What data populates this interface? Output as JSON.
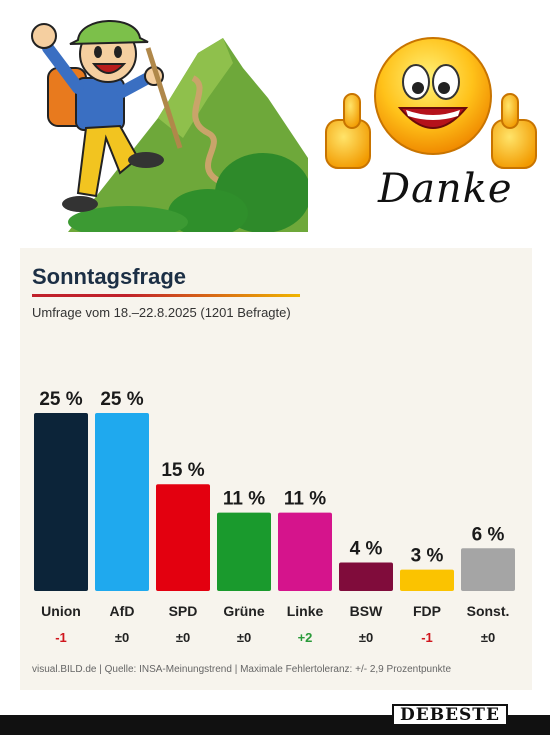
{
  "images": {
    "left_icon": "hiker-cartoon-icon",
    "right_icon": "thumbs-up-smiley-icon",
    "right_caption": "Danke"
  },
  "colors": {
    "card_background": "#f7f4ed",
    "title": "#1c2f45",
    "negative_change": "#d0151d",
    "positive_change": "#2a9a3a",
    "neutral_change": "#222222"
  },
  "chart_data": {
    "type": "bar",
    "title": "Sonntagsfrage",
    "subtitle": "Umfrage vom 18.–22.8.2025 (1201 Befragte)",
    "xlabel": "",
    "ylabel": "",
    "ylim": [
      0,
      25
    ],
    "grid": false,
    "categories": [
      "Union",
      "AfD",
      "SPD",
      "Grüne",
      "Linke",
      "BSW",
      "FDP",
      "Sonst."
    ],
    "values": [
      25,
      25,
      15,
      11,
      11,
      4,
      3,
      6
    ],
    "value_labels": [
      "25 %",
      "25 %",
      "15 %",
      "11 %",
      "11 %",
      "4 %",
      "3 %",
      "6 %"
    ],
    "changes": [
      "-1",
      "±0",
      "±0",
      "±0",
      "+2",
      "±0",
      "-1",
      "±0"
    ],
    "bar_colors": [
      "#0c2439",
      "#1fa9ee",
      "#e3000f",
      "#1a9a2d",
      "#d5148c",
      "#800c3b",
      "#fbc300",
      "#a5a5a5"
    ],
    "footnote": "visual.BILD.de | Quelle: INSA-Meinungstrend | Maximale Fehlertoleranz: +/- 2,9 Prozentpunkte"
  },
  "watermark": "DEBESTE"
}
